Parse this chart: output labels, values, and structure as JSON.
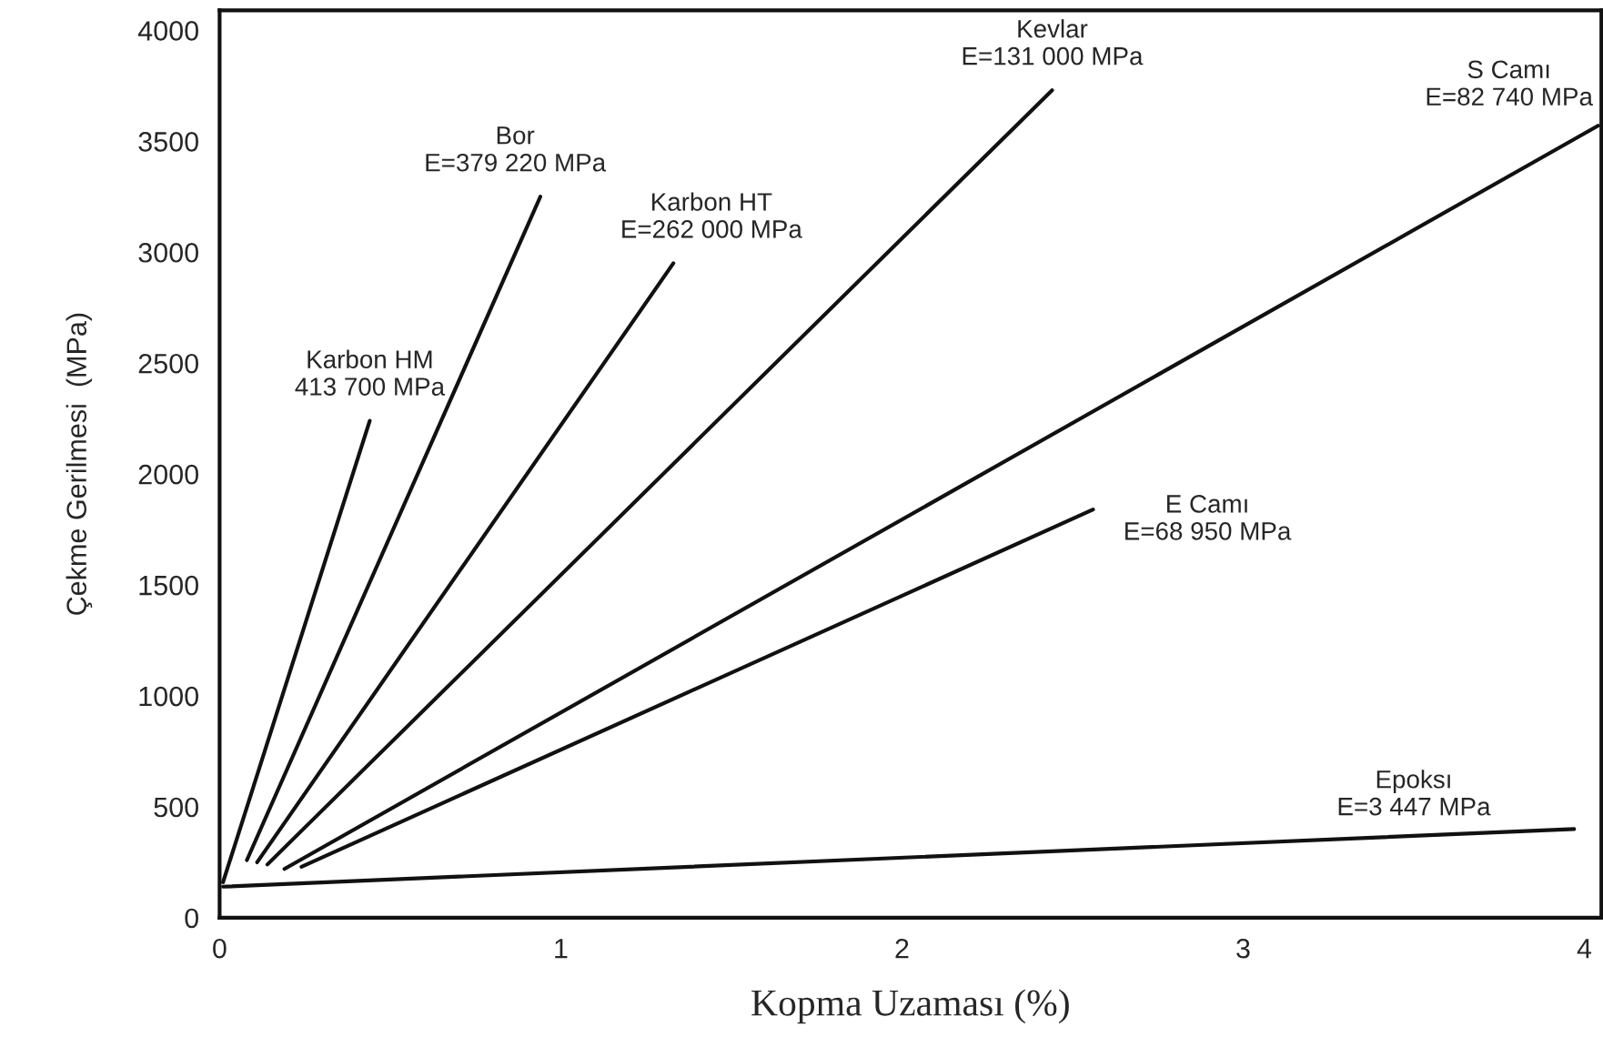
{
  "chart_data": {
    "type": "line",
    "xlabel": "Kopma Uzaması (%)",
    "ylabel": "Çekme Gerilmesi  (MPa)",
    "xlim": [
      0,
      4.05
    ],
    "ylim": [
      0,
      4090
    ],
    "xticks": [
      0,
      1,
      2,
      3,
      4
    ],
    "yticks": [
      0,
      500,
      1000,
      1500,
      2000,
      2500,
      3000,
      3500,
      4000
    ],
    "grid": false,
    "legend": false,
    "marker": "none",
    "line_style": "solid",
    "series": [
      {
        "color": "#111111",
        "x": [
          0.01,
          0.44
        ],
        "values": [
          160,
          2240
        ]
      },
      {
        "color": "#111111",
        "x": [
          0.08,
          0.94
        ],
        "values": [
          260,
          3250
        ]
      },
      {
        "color": "#111111",
        "x": [
          0.11,
          1.33
        ],
        "values": [
          250,
          2950
        ]
      },
      {
        "color": "#111111",
        "x": [
          0.14,
          2.44
        ],
        "values": [
          240,
          3730
        ]
      },
      {
        "color": "#111111",
        "x": [
          0.19,
          4.04
        ],
        "values": [
          220,
          3570
        ]
      },
      {
        "color": "#111111",
        "x": [
          0.24,
          2.56
        ],
        "values": [
          230,
          1840
        ]
      },
      {
        "color": "#111111",
        "x": [
          0.01,
          3.97
        ],
        "values": [
          140,
          400
        ]
      }
    ],
    "annotations": [
      {
        "text": "Karbon HM\n413 700 MPa",
        "x": 0.44,
        "y": 2240
      },
      {
        "text": "Bor\nE=379 220 MPa",
        "x": 0.94,
        "y": 3250
      },
      {
        "text": "Karbon HT\nE=262 000 MPa",
        "x": 1.33,
        "y": 2950
      },
      {
        "text": "Kevlar\nE=131 000 MPa",
        "x": 2.44,
        "y": 3730
      },
      {
        "text": "S Camı\nE=82 740 MPa",
        "x": 4.04,
        "y": 3570
      },
      {
        "text": "E Camı\nE=68 950 MPa",
        "x": 2.56,
        "y": 1840
      },
      {
        "text": "Epoksı\nE=3 447 MPa",
        "x": 3.5,
        "y": 370
      }
    ]
  }
}
